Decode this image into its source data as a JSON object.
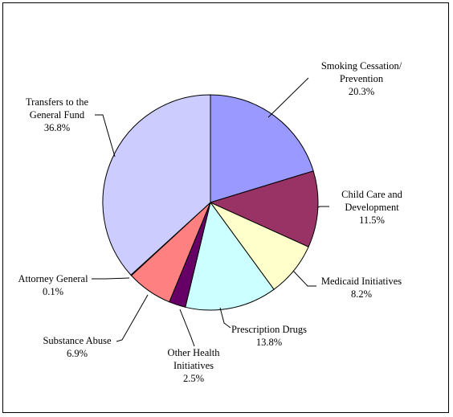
{
  "chart_data": {
    "type": "pie",
    "title": "",
    "slices": [
      {
        "label": [
          "Smoking Cessation/",
          "Prevention"
        ],
        "pct_text": "20.3%",
        "value": 20.3,
        "color": "#9999ff"
      },
      {
        "label": [
          "Child Care and",
          "Development"
        ],
        "pct_text": "11.5%",
        "value": 11.5,
        "color": "#993366"
      },
      {
        "label": [
          "Medicaid Initiatives"
        ],
        "pct_text": "8.2%",
        "value": 8.2,
        "color": "#ffffcc"
      },
      {
        "label": [
          "Prescription Drugs"
        ],
        "pct_text": "13.8%",
        "value": 13.8,
        "color": "#ccffff"
      },
      {
        "label": [
          "Other Health",
          "Initiatives"
        ],
        "pct_text": "2.5%",
        "value": 2.5,
        "color": "#660066"
      },
      {
        "label": [
          "Substance Abuse"
        ],
        "pct_text": "6.9%",
        "value": 6.9,
        "color": "#ff8080"
      },
      {
        "label": [
          "Attorney General"
        ],
        "pct_text": "0.1%",
        "value": 0.1,
        "color": "#0066cc"
      },
      {
        "label": [
          "Transfers to the",
          "General Fund"
        ],
        "pct_text": "36.8%",
        "value": 36.8,
        "color": "#ccccff"
      }
    ],
    "start_angle": "12 o'clock",
    "direction": "clockwise",
    "legend": "none"
  }
}
